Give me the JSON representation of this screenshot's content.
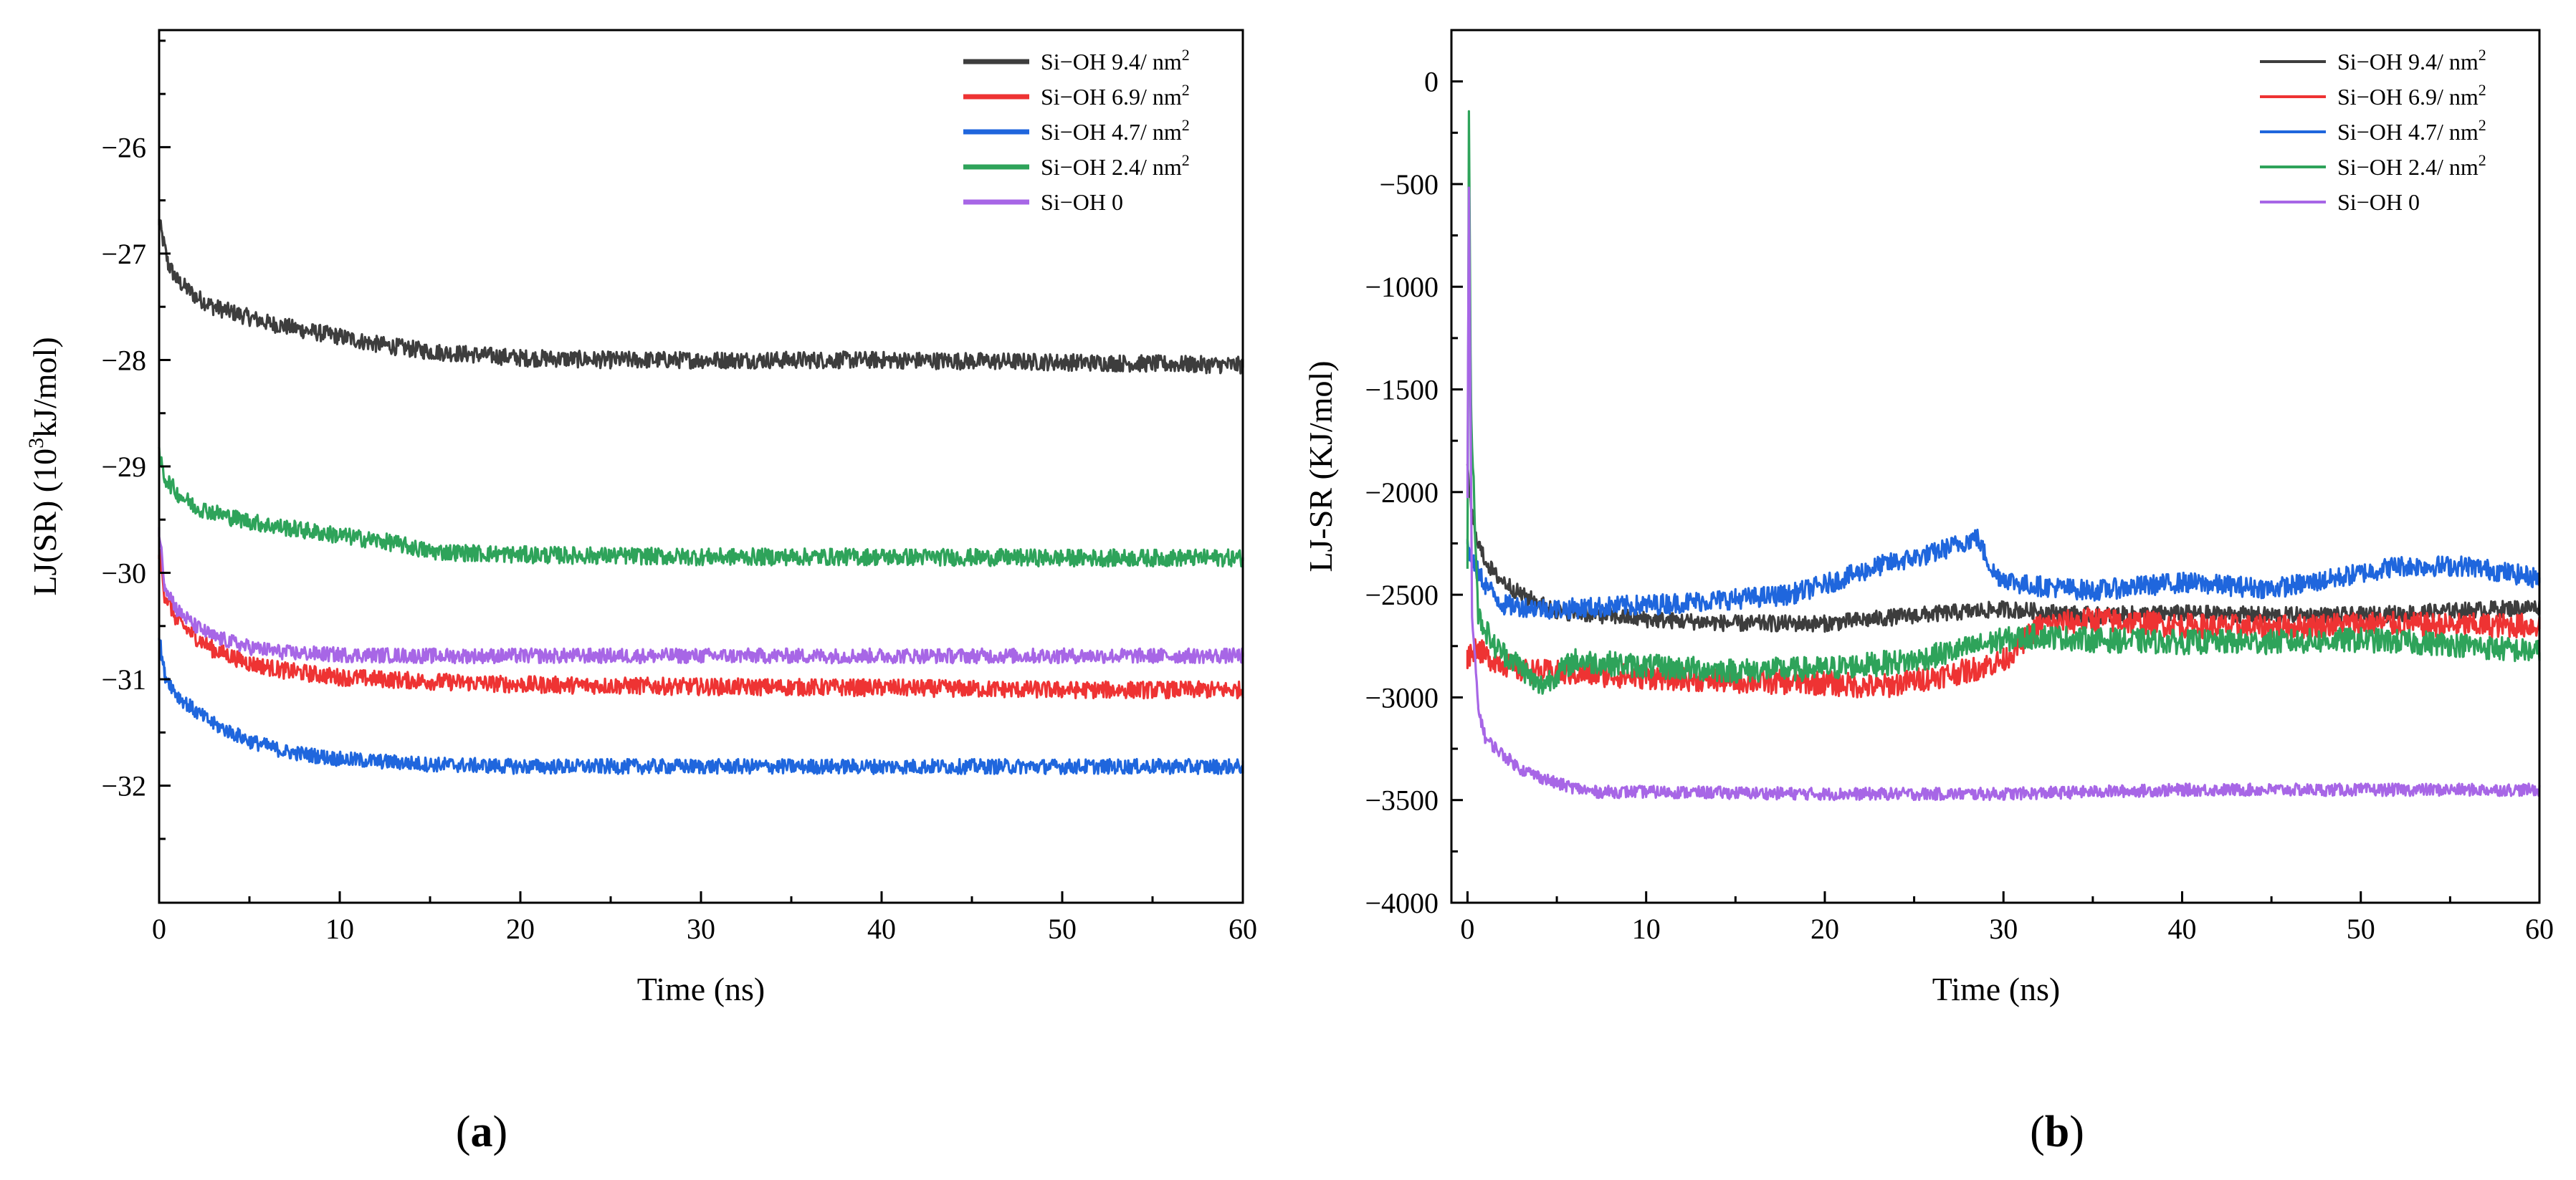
{
  "figure": {
    "panels": [
      {
        "id": "a",
        "caption_open": "(",
        "caption_letter": "a",
        "caption_close": ")"
      },
      {
        "id": "b",
        "caption_open": "(",
        "caption_letter": "b",
        "caption_close": ")"
      }
    ]
  },
  "chart_data": [
    {
      "type": "line",
      "panel": "a",
      "title": "",
      "xlabel": "Time (ns)",
      "ylabel_main": "LJ(SR) (10",
      "ylabel_sup": "3",
      "ylabel_tail": "kJ/mol)",
      "xlim": [
        0,
        60
      ],
      "ylim": [
        -33.1,
        -24.9
      ],
      "xticks": [
        0,
        10,
        20,
        30,
        40,
        50,
        60
      ],
      "xtick_labels": [
        "0",
        "10",
        "20",
        "30",
        "40",
        "50",
        "60"
      ],
      "yticks": [
        -32,
        -31,
        -30,
        -29,
        -28,
        -27,
        -26
      ],
      "ytick_labels": [
        "−32",
        "−31",
        "−30",
        "−29",
        "−28",
        "−27",
        "−26"
      ],
      "legend_position": "top-right",
      "series": [
        {
          "name": "Si−OH 9.4/ nm",
          "sup": "2",
          "color": "#3d3d3d",
          "x": [
            0,
            0.5,
            1,
            2,
            3,
            4,
            6,
            8,
            10,
            12,
            15,
            20,
            25,
            30,
            40,
            50,
            60
          ],
          "y": [
            -26.7,
            -27.1,
            -27.25,
            -27.4,
            -27.5,
            -27.55,
            -27.65,
            -27.72,
            -27.78,
            -27.85,
            -27.92,
            -27.98,
            -28.0,
            -28.0,
            -28.0,
            -28.02,
            -28.05
          ],
          "noise": 0.08
        },
        {
          "name": "Si−OH 6.9/ nm",
          "sup": "2",
          "color": "#ee3333",
          "x": [
            0,
            0.3,
            1,
            2,
            3,
            5,
            7,
            10,
            15,
            20,
            30,
            40,
            50,
            60
          ],
          "y": [
            -29.8,
            -30.2,
            -30.45,
            -30.6,
            -30.72,
            -30.85,
            -30.92,
            -30.98,
            -31.02,
            -31.05,
            -31.07,
            -31.08,
            -31.1,
            -31.1
          ],
          "noise": 0.08
        },
        {
          "name": "Si−OH 4.7/ nm",
          "sup": "2",
          "color": "#1f66dd",
          "x": [
            0,
            0.3,
            1,
            2,
            3,
            5,
            7,
            10,
            15,
            20,
            30,
            40,
            50,
            60
          ],
          "y": [
            -30.6,
            -30.95,
            -31.15,
            -31.3,
            -31.42,
            -31.58,
            -31.68,
            -31.75,
            -31.8,
            -31.82,
            -31.82,
            -31.82,
            -31.82,
            -31.82
          ],
          "noise": 0.07
        },
        {
          "name": "Si−OH 2.4/ nm",
          "sup": "2",
          "color": "#2ea35a",
          "x": [
            0,
            0.3,
            1,
            2,
            4,
            6,
            8,
            10,
            13,
            15,
            20,
            30,
            40,
            50,
            60
          ],
          "y": [
            -28.9,
            -29.1,
            -29.25,
            -29.38,
            -29.48,
            -29.55,
            -29.6,
            -29.65,
            -29.72,
            -29.8,
            -29.83,
            -29.85,
            -29.85,
            -29.86,
            -29.86
          ],
          "noise": 0.08
        },
        {
          "name": "Si−OH 0",
          "sup": "",
          "color": "#a766e6",
          "x": [
            0,
            0.3,
            1,
            2,
            3,
            5,
            7,
            10,
            15,
            20,
            30,
            40,
            50,
            60
          ],
          "y": [
            -29.6,
            -30.1,
            -30.35,
            -30.5,
            -30.6,
            -30.7,
            -30.75,
            -30.77,
            -30.78,
            -30.78,
            -30.78,
            -30.78,
            -30.78,
            -30.78
          ],
          "noise": 0.07
        }
      ]
    },
    {
      "type": "line",
      "panel": "b",
      "title": "",
      "xlabel": "Time (ns)",
      "ylabel_main": "LJ-SR (KJ/mol)",
      "ylabel_sup": "",
      "ylabel_tail": "",
      "xlim": [
        -0.9,
        60
      ],
      "ylim": [
        -4000,
        250
      ],
      "xticks": [
        0,
        10,
        20,
        30,
        40,
        50,
        60
      ],
      "xtick_labels": [
        "0",
        "10",
        "20",
        "30",
        "40",
        "50",
        "60"
      ],
      "yticks": [
        -4000,
        -3500,
        -3000,
        -2500,
        -2000,
        -1500,
        -1000,
        -500,
        0
      ],
      "ytick_labels": [
        "−4000",
        "−3500",
        "−3000",
        "−2500",
        "−2000",
        "−1500",
        "−1000",
        "−500",
        "0"
      ],
      "legend_position": "top-right",
      "series": [
        {
          "name": "Si−OH 9.4/ nm",
          "sup": "2",
          "color": "#3d3d3d",
          "x": [
            0,
            0.3,
            0.8,
            1.5,
            3,
            5,
            10,
            15,
            20,
            25,
            30,
            35,
            40,
            45,
            50,
            55,
            60
          ],
          "y": [
            -1900,
            -2150,
            -2300,
            -2400,
            -2500,
            -2580,
            -2620,
            -2640,
            -2640,
            -2600,
            -2570,
            -2600,
            -2590,
            -2600,
            -2600,
            -2580,
            -2560
          ],
          "noise": 40
        },
        {
          "name": "Si−OH 6.9/ nm",
          "sup": "2",
          "color": "#ee3333",
          "x": [
            0,
            0.5,
            1,
            3,
            5,
            10,
            15,
            20,
            23,
            28,
            30,
            32,
            35,
            40,
            45,
            50,
            55,
            60
          ],
          "y": [
            -2800,
            -2750,
            -2800,
            -2870,
            -2880,
            -2900,
            -2920,
            -2930,
            -2950,
            -2870,
            -2820,
            -2650,
            -2620,
            -2650,
            -2660,
            -2640,
            -2650,
            -2650
          ],
          "noise": 60
        },
        {
          "name": "Si−OH 4.7/ nm",
          "sup": "2",
          "color": "#1f66dd",
          "x": [
            0,
            0.3,
            1,
            2,
            5,
            10,
            15,
            18,
            20,
            23,
            26,
            28.5,
            29.5,
            31,
            35,
            40,
            45,
            48,
            52,
            56,
            60
          ],
          "y": [
            -2250,
            -2350,
            -2450,
            -2550,
            -2570,
            -2550,
            -2520,
            -2500,
            -2450,
            -2360,
            -2300,
            -2220,
            -2400,
            -2450,
            -2480,
            -2440,
            -2470,
            -2430,
            -2360,
            -2360,
            -2420
          ],
          "noise": 50
        },
        {
          "name": "Si−OH 2.4/ nm",
          "sup": "2",
          "color": "#2ea35a",
          "x": [
            0,
            0.08,
            0.2,
            0.6,
            1.5,
            3,
            4,
            6,
            10,
            15,
            20,
            25,
            30,
            32,
            35,
            40,
            45,
            50,
            55,
            60
          ],
          "y": [
            -2400,
            -200,
            -1600,
            -2600,
            -2750,
            -2850,
            -2950,
            -2820,
            -2850,
            -2870,
            -2860,
            -2820,
            -2720,
            -2700,
            -2720,
            -2730,
            -2730,
            -2720,
            -2740,
            -2780
          ],
          "noise": 60
        },
        {
          "name": "Si−OH 0",
          "sup": "",
          "color": "#a766e6",
          "x": [
            0,
            0.08,
            0.25,
            0.6,
            1,
            2,
            3,
            5,
            7,
            10,
            20,
            30,
            40,
            50,
            60
          ],
          "y": [
            -2000,
            -500,
            -2600,
            -3050,
            -3200,
            -3280,
            -3350,
            -3420,
            -3460,
            -3460,
            -3470,
            -3470,
            -3450,
            -3450,
            -3450
          ],
          "noise": 30
        }
      ]
    }
  ]
}
